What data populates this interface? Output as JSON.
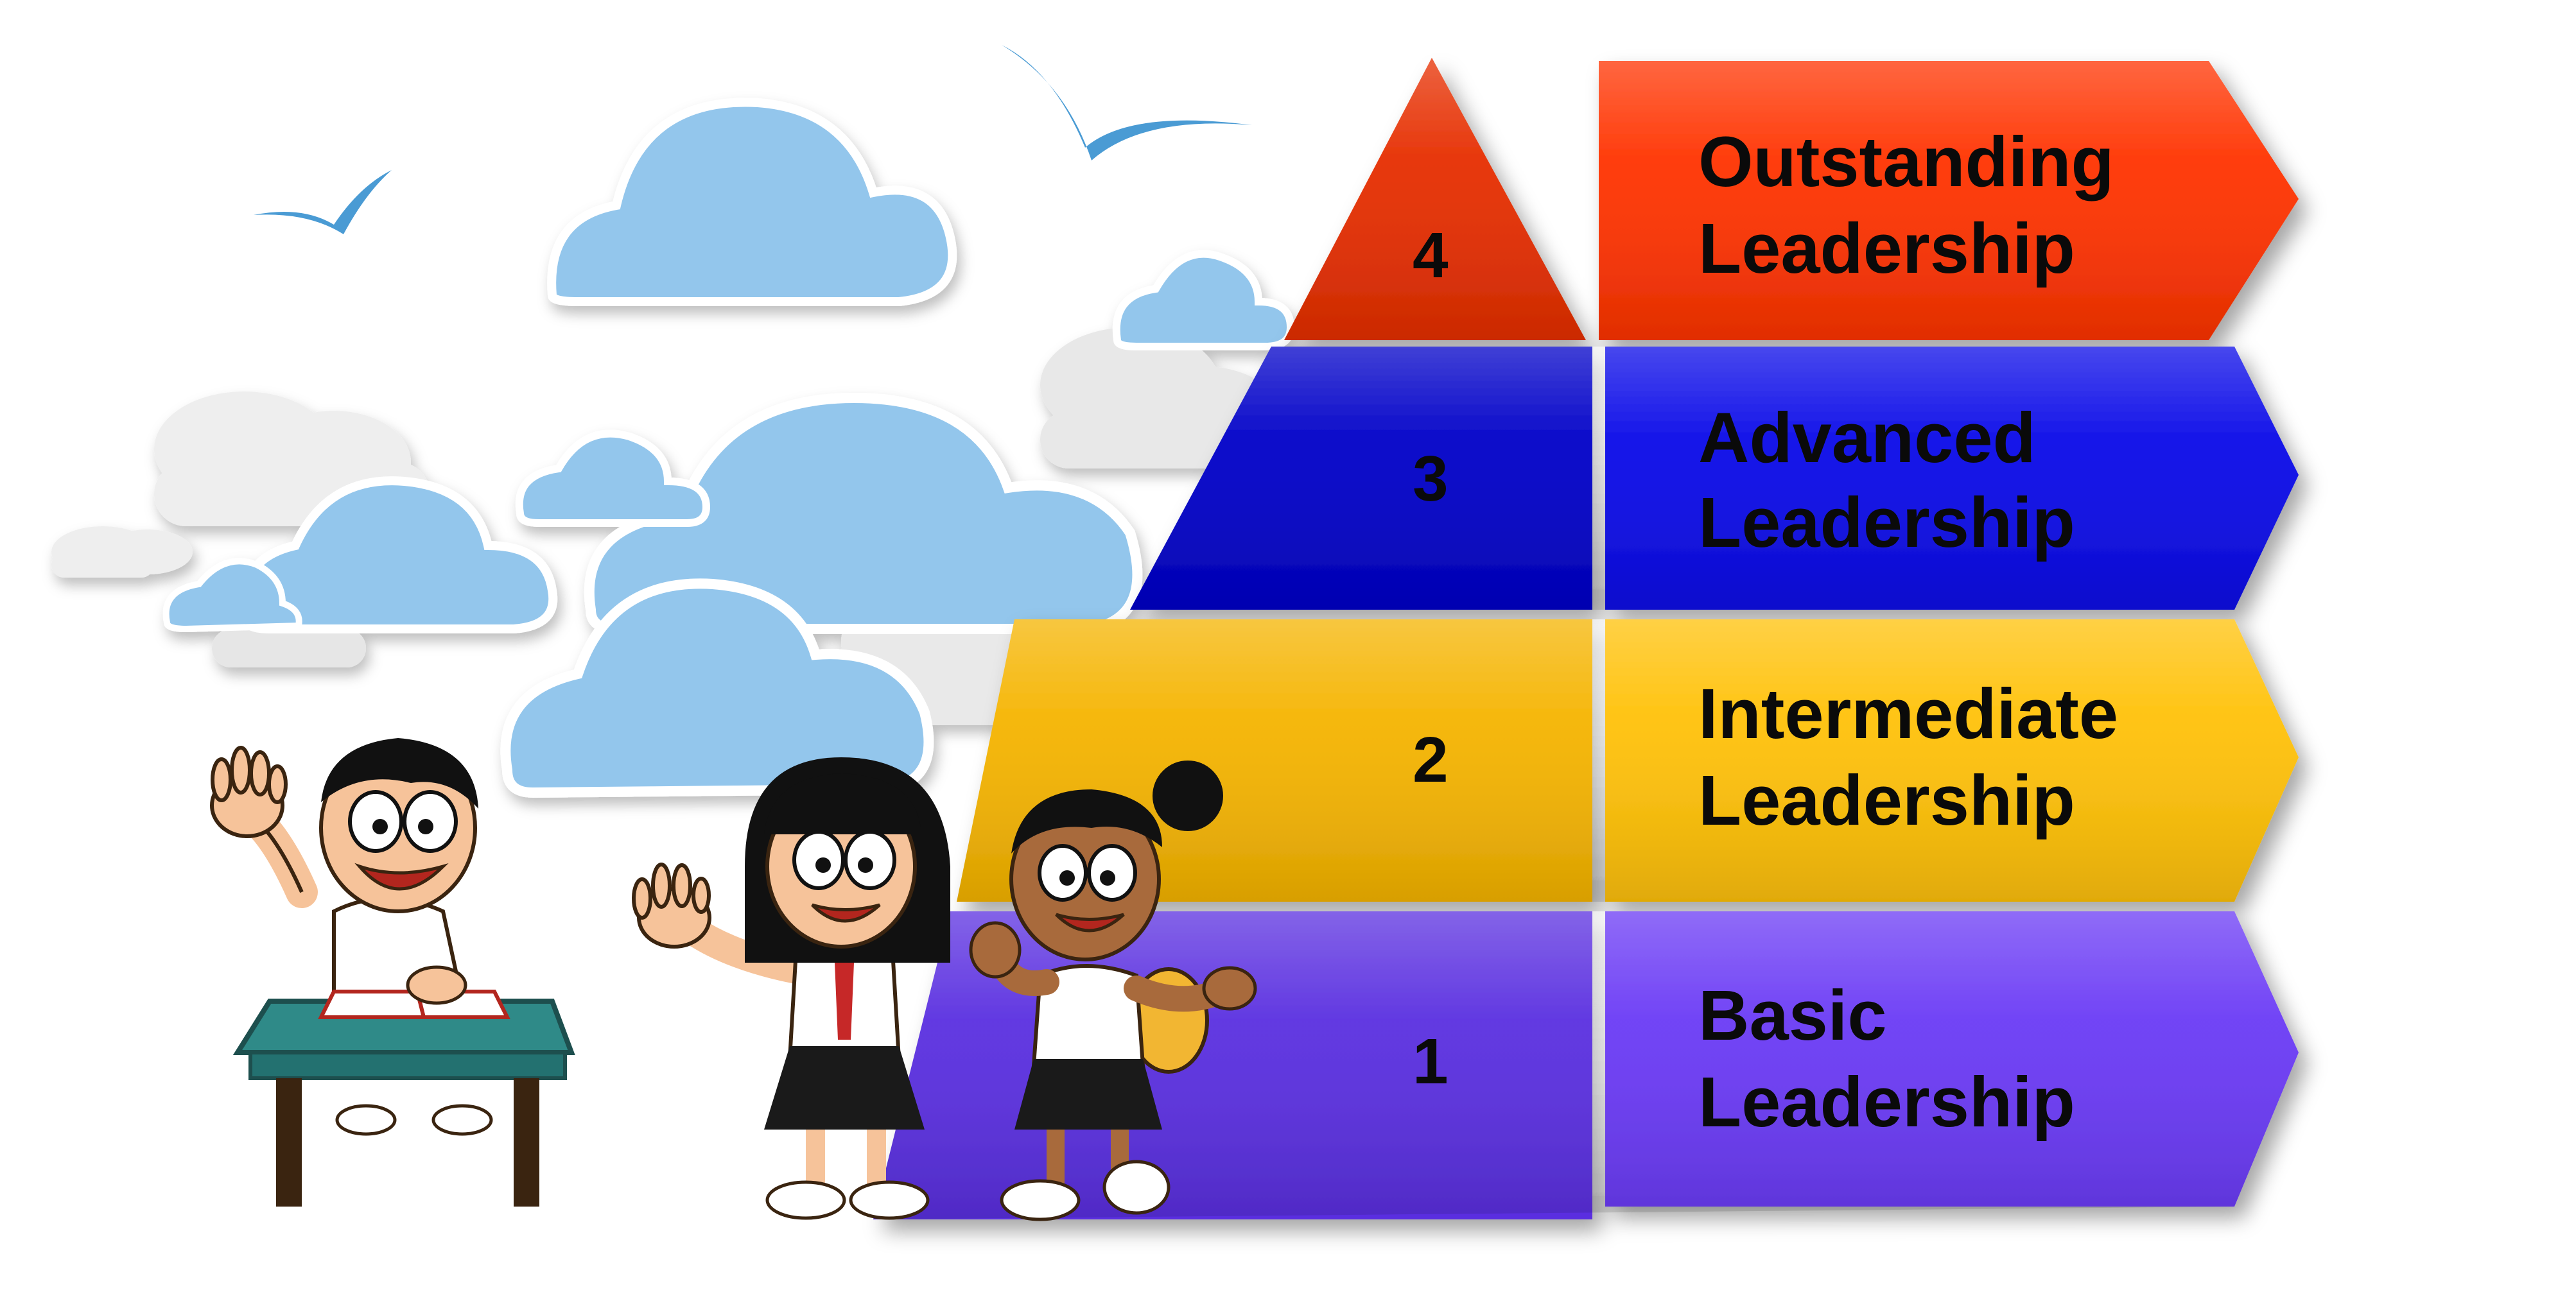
{
  "levels": [
    {
      "number": "1",
      "line1": "Basic",
      "line2": "Leadership",
      "color": "#6a3af5",
      "dark": "#5a2fe0"
    },
    {
      "number": "2",
      "line1": "Intermediate",
      "line2": "Leadership",
      "color": "#ffc107",
      "dark": "#f5b400"
    },
    {
      "number": "3",
      "line1": "Advanced",
      "line2": "Leadership",
      "color": "#0a0ae8",
      "dark": "#0000c8"
    },
    {
      "number": "4",
      "line1": "Outstanding",
      "line2": "Leadership",
      "color": "#ff3300",
      "dark": "#e62e00"
    }
  ],
  "colors": {
    "sky_blue": "#93c6ec",
    "cloud_outline": "#ffffff",
    "bird": "#4a9bd4",
    "desk": "#2f8a88",
    "shirt": "#ffffff",
    "skirt": "#1a1a1a",
    "skin_light": "#f6c39a",
    "skin_dark": "#a86a3c",
    "hair": "#111111"
  }
}
